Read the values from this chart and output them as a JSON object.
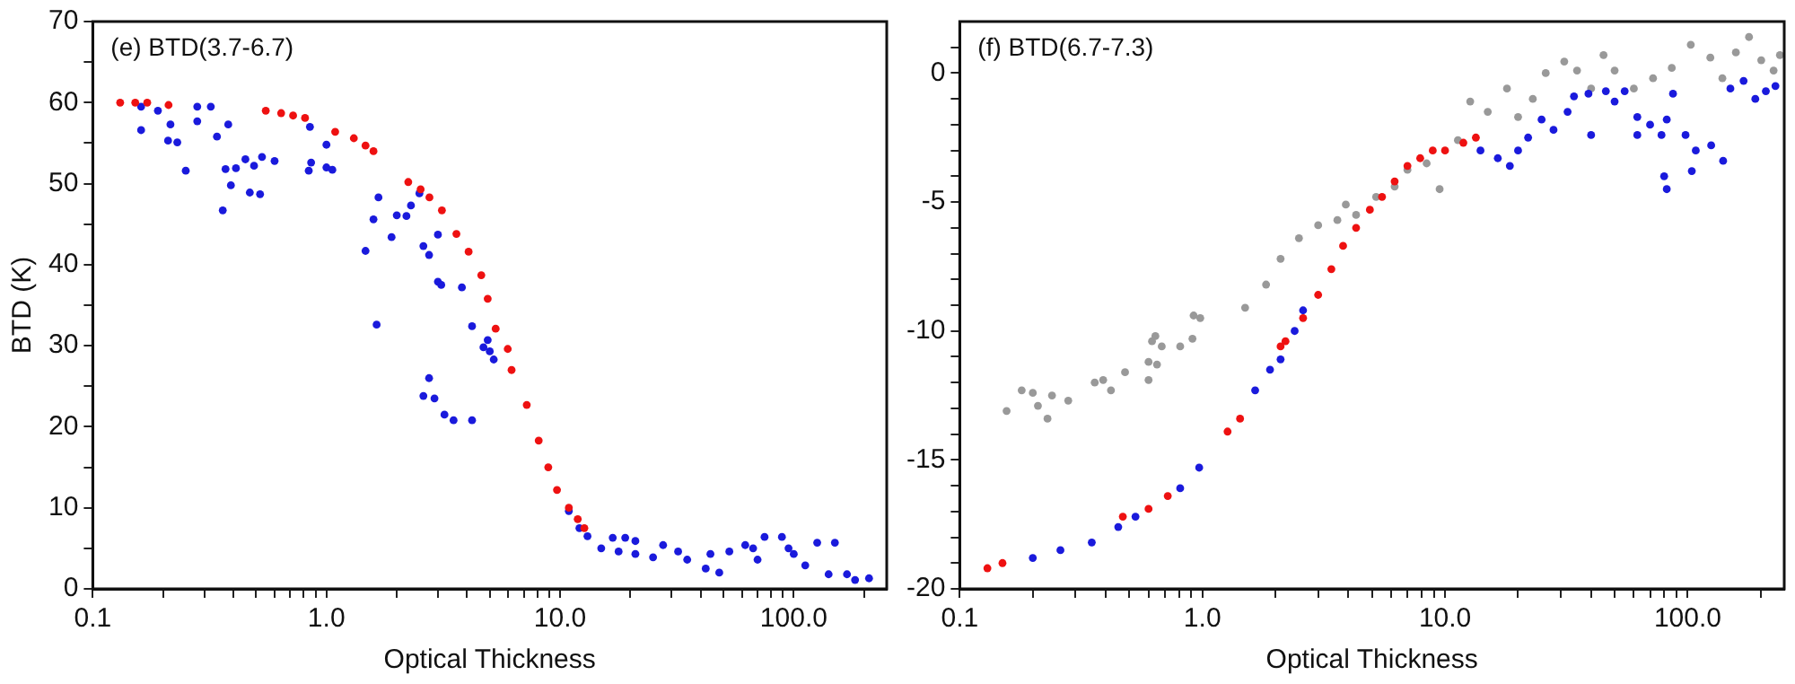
{
  "chart_data": [
    {
      "type": "scatter",
      "annotations": [
        "(e) BTD(3.7-6.7)"
      ],
      "xlabel": "Optical Thickness",
      "ylabel": "BTD (K)",
      "log": "x",
      "grid": false,
      "legend": false,
      "marker": "circle",
      "xlim": [
        0.1,
        250
      ],
      "ylim": [
        0,
        70
      ],
      "xticks": [
        {
          "value": 0.1,
          "label": "0.1"
        },
        {
          "value": 0.2,
          "label": null
        },
        {
          "value": 0.3,
          "label": null
        },
        {
          "value": 0.4,
          "label": null
        },
        {
          "value": 0.5,
          "label": null
        },
        {
          "value": 0.6,
          "label": null
        },
        {
          "value": 0.7,
          "label": null
        },
        {
          "value": 0.8,
          "label": null
        },
        {
          "value": 0.9,
          "label": null
        },
        {
          "value": 1,
          "label": "1.0"
        },
        {
          "value": 2,
          "label": null
        },
        {
          "value": 3,
          "label": null
        },
        {
          "value": 4,
          "label": null
        },
        {
          "value": 5,
          "label": null
        },
        {
          "value": 6,
          "label": null
        },
        {
          "value": 7,
          "label": null
        },
        {
          "value": 8,
          "label": null
        },
        {
          "value": 9,
          "label": null
        },
        {
          "value": 10,
          "label": "10.0"
        },
        {
          "value": 20,
          "label": null
        },
        {
          "value": 30,
          "label": null
        },
        {
          "value": 40,
          "label": null
        },
        {
          "value": 50,
          "label": null
        },
        {
          "value": 60,
          "label": null
        },
        {
          "value": 70,
          "label": null
        },
        {
          "value": 80,
          "label": null
        },
        {
          "value": 90,
          "label": null
        },
        {
          "value": 100,
          "label": "100.0"
        },
        {
          "value": 200,
          "label": null
        }
      ],
      "yticks": [
        0,
        {
          "value": 5,
          "label": null
        },
        10,
        {
          "value": 15,
          "label": null
        },
        20,
        {
          "value": 25,
          "label": null
        },
        30,
        {
          "value": 35,
          "label": null
        },
        40,
        {
          "value": 45,
          "label": null
        },
        50,
        {
          "value": 55,
          "label": null
        },
        60,
        {
          "value": 65,
          "label": null
        },
        70
      ],
      "series": [
        {
          "color": "#1a1adc",
          "x": [
            0.161,
            0.161,
            0.19,
            0.215,
            0.21,
            0.23,
            0.25,
            0.28,
            0.28,
            0.32,
            0.34,
            0.36,
            0.37,
            0.38,
            0.39,
            0.41,
            0.45,
            0.47,
            0.49,
            0.52,
            0.53,
            0.6,
            0.84,
            0.85,
            0.86,
            1.0,
            1.0,
            1.06,
            1.47,
            1.59,
            1.64,
            1.67,
            1.9,
            2.0,
            2.2,
            2.3,
            2.5,
            2.6,
            2.75,
            3.0,
            3.0,
            3.1,
            3.8,
            4.2,
            4.7,
            2.6,
            2.75,
            2.9,
            3.2,
            3.5,
            4.2,
            4.9,
            5.0,
            5.2,
            10.9,
            12.1,
            13.1,
            16.8,
            19,
            15,
            17.8,
            21,
            21,
            25,
            27.6,
            32,
            35,
            42,
            48,
            44,
            53,
            62,
            70,
            67,
            75,
            89,
            95,
            100,
            112,
            126,
            141,
            150,
            169,
            183,
            210
          ],
          "values": [
            56.6,
            59.5,
            59,
            57.3,
            55.3,
            55.1,
            51.6,
            59.5,
            57.7,
            59.5,
            55.8,
            46.7,
            51.8,
            57.3,
            49.8,
            51.9,
            53,
            48.9,
            52.2,
            48.7,
            53.3,
            52.8,
            51.6,
            57,
            52.6,
            54.8,
            52,
            51.7,
            41.7,
            45.6,
            32.6,
            48.3,
            43.4,
            46.1,
            46,
            47.3,
            48.8,
            42.3,
            41.2,
            37.9,
            43.7,
            37.5,
            37.2,
            32.4,
            29.8,
            23.8,
            26,
            23.5,
            21.5,
            20.8,
            20.8,
            30.7,
            29.3,
            28.3,
            9.6,
            7.5,
            6.5,
            6.3,
            6.3,
            5,
            4.6,
            4.3,
            5.9,
            3.9,
            5.4,
            4.6,
            3.6,
            2.5,
            2,
            4.3,
            4.6,
            5.4,
            3.6,
            5,
            6.4,
            6.4,
            5,
            4.3,
            2.9,
            5.7,
            1.8,
            5.7,
            1.8,
            1.1,
            1.3
          ]
        },
        {
          "color": "#ee1111",
          "x": [
            0.131,
            0.152,
            0.171,
            0.211,
            0.55,
            0.64,
            0.72,
            0.81,
            1.09,
            1.31,
            1.47,
            1.59,
            2.24,
            2.53,
            2.76,
            3.12,
            3.6,
            4.06,
            4.6,
            4.9,
            5.3,
            5.97,
            6.2,
            7.2,
            8.1,
            8.9,
            9.7,
            10.9,
            11.9,
            12.7
          ],
          "values": [
            60,
            60,
            60,
            59.7,
            59,
            58.7,
            58.4,
            58.1,
            56.4,
            55.6,
            54.7,
            54,
            50.2,
            49.3,
            48.3,
            46.7,
            43.8,
            41.6,
            38.7,
            35.8,
            32.1,
            29.6,
            27,
            22.7,
            18.3,
            15,
            12.2,
            10,
            8.6,
            7.5
          ]
        }
      ]
    },
    {
      "type": "scatter",
      "annotations": [
        "(f) BTD(6.7-7.3)"
      ],
      "xlabel": "Optical Thickness",
      "log": "x",
      "grid": false,
      "legend": false,
      "marker": "circle",
      "xlim": [
        0.1,
        250
      ],
      "ylim": [
        -20,
        2
      ],
      "xticks": [
        {
          "value": 0.1,
          "label": "0.1"
        },
        {
          "value": 0.2,
          "label": null
        },
        {
          "value": 0.3,
          "label": null
        },
        {
          "value": 0.4,
          "label": null
        },
        {
          "value": 0.5,
          "label": null
        },
        {
          "value": 0.6,
          "label": null
        },
        {
          "value": 0.7,
          "label": null
        },
        {
          "value": 0.8,
          "label": null
        },
        {
          "value": 0.9,
          "label": null
        },
        {
          "value": 1,
          "label": "1.0"
        },
        {
          "value": 2,
          "label": null
        },
        {
          "value": 3,
          "label": null
        },
        {
          "value": 4,
          "label": null
        },
        {
          "value": 5,
          "label": null
        },
        {
          "value": 6,
          "label": null
        },
        {
          "value": 7,
          "label": null
        },
        {
          "value": 8,
          "label": null
        },
        {
          "value": 9,
          "label": null
        },
        {
          "value": 10,
          "label": "10.0"
        },
        {
          "value": 20,
          "label": null
        },
        {
          "value": 30,
          "label": null
        },
        {
          "value": 40,
          "label": null
        },
        {
          "value": 50,
          "label": null
        },
        {
          "value": 60,
          "label": null
        },
        {
          "value": 70,
          "label": null
        },
        {
          "value": 80,
          "label": null
        },
        {
          "value": 90,
          "label": null
        },
        {
          "value": 100,
          "label": "100.0"
        },
        {
          "value": 200,
          "label": null
        }
      ],
      "yticks": [
        -20,
        {
          "value": -19,
          "label": null
        },
        {
          "value": -18,
          "label": null
        },
        {
          "value": -17,
          "label": null
        },
        {
          "value": -16,
          "label": null
        },
        -15,
        {
          "value": -14,
          "label": null
        },
        {
          "value": -13,
          "label": null
        },
        {
          "value": -12,
          "label": null
        },
        {
          "value": -11,
          "label": null
        },
        -10,
        {
          "value": -9,
          "label": null
        },
        {
          "value": -8,
          "label": null
        },
        {
          "value": -7,
          "label": null
        },
        {
          "value": -6,
          "label": null
        },
        -5,
        {
          "value": -4,
          "label": null
        },
        {
          "value": -3,
          "label": null
        },
        {
          "value": -2,
          "label": null
        },
        {
          "value": -1,
          "label": null
        },
        0,
        {
          "value": 1,
          "label": null
        }
      ],
      "series": [
        {
          "color": "#999999",
          "x": [
            0.156,
            0.18,
            0.2,
            0.21,
            0.23,
            0.24,
            0.28,
            0.36,
            0.39,
            0.42,
            0.48,
            0.6,
            0.6,
            0.65,
            0.62,
            0.81,
            0.91,
            0.64,
            0.68,
            0.92,
            0.98,
            1.5,
            1.83,
            2.1,
            2.5,
            3.0,
            3.6,
            3.9,
            4.3,
            5.2,
            6.2,
            7.0,
            8.4,
            9.5,
            11.3,
            12.7,
            15,
            18,
            20,
            23,
            26,
            31,
            35,
            40,
            45,
            50,
            60,
            72,
            86,
            103,
            124,
            139,
            158,
            179,
            201,
            226,
            240
          ],
          "values": [
            -13.1,
            -12.3,
            -12.4,
            -12.9,
            -13.4,
            -12.5,
            -12.7,
            -12,
            -11.9,
            -12.3,
            -11.6,
            -11.2,
            -11.9,
            -11.3,
            -10.4,
            -10.6,
            -10.3,
            -10.2,
            -10.6,
            -9.4,
            -9.5,
            -9.1,
            -8.2,
            -7.2,
            -6.4,
            -5.9,
            -5.7,
            -5.1,
            -5.5,
            -4.8,
            -4.4,
            -3.75,
            -3.5,
            -4.5,
            -2.6,
            -1.1,
            -1.5,
            -0.6,
            -1.7,
            -1,
            0,
            0.45,
            0.1,
            -0.6,
            0.7,
            0.1,
            -0.6,
            -0.2,
            0.2,
            1.1,
            0.6,
            -0.2,
            0.8,
            1.4,
            0.5,
            0.1,
            0.7
          ]
        },
        {
          "color": "#1a1adc",
          "x": [
            0.2,
            0.26,
            0.35,
            0.45,
            0.53,
            0.81,
            0.97,
            1.65,
            1.9,
            2.1,
            2.4,
            2.6,
            14,
            16.5,
            18.5,
            20,
            22,
            25,
            28,
            32,
            34,
            39,
            40,
            46,
            50,
            55,
            62,
            62,
            70,
            78,
            82,
            87,
            98,
            108,
            104,
            80,
            82,
            125,
            140,
            150,
            170,
            190,
            210,
            230
          ],
          "values": [
            -18.8,
            -18.5,
            -18.2,
            -17.6,
            -17.2,
            -16.1,
            -15.3,
            -12.3,
            -11.5,
            -11.1,
            -10,
            -9.2,
            -3,
            -3.3,
            -3.6,
            -3,
            -2.5,
            -1.8,
            -2.2,
            -1.5,
            -0.9,
            -0.8,
            -2.4,
            -0.7,
            -1.1,
            -0.7,
            -1.7,
            -2.4,
            -2,
            -2.4,
            -1.8,
            -0.8,
            -2.4,
            -3,
            -3.8,
            -4,
            -4.5,
            -2.8,
            -3.4,
            -0.6,
            -0.3,
            -1,
            -0.7,
            -0.5
          ]
        },
        {
          "color": "#ee1111",
          "x": [
            0.13,
            0.15,
            0.47,
            0.6,
            0.72,
            1.27,
            1.43,
            2.1,
            2.2,
            2.6,
            3.0,
            3.4,
            3.8,
            4.3,
            4.9,
            5.5,
            6.2,
            7.0,
            7.9,
            8.9,
            10,
            11.9,
            13.4
          ],
          "values": [
            -19.2,
            -19,
            -17.2,
            -16.9,
            -16.4,
            -13.9,
            -13.4,
            -10.6,
            -10.4,
            -9.5,
            -8.6,
            -7.6,
            -6.7,
            -6,
            -5.3,
            -4.8,
            -4.2,
            -3.6,
            -3.3,
            -3,
            -3,
            -2.7,
            -2.5
          ]
        }
      ]
    }
  ]
}
